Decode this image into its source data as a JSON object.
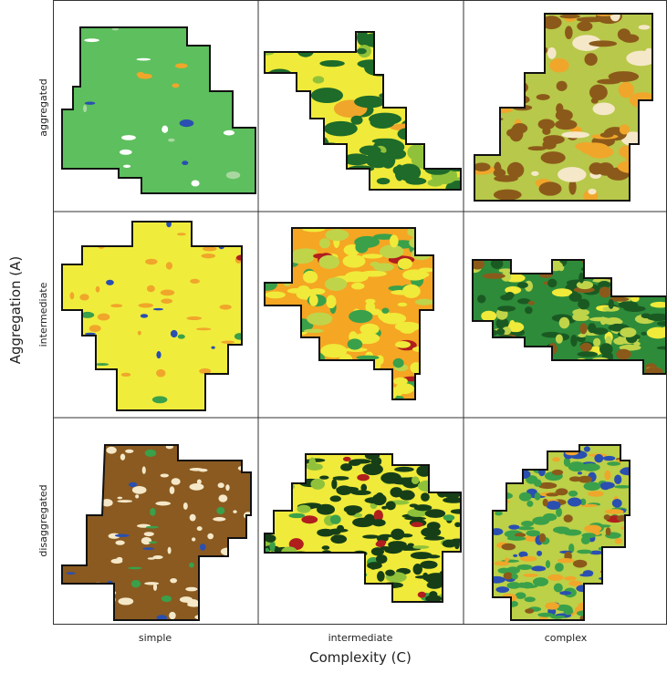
{
  "y_axis": {
    "title": "Aggregation (A)"
  },
  "x_axis": {
    "title": "Complexity (C)"
  },
  "rows": [
    "aggregated",
    "intermediate",
    "disaggregated"
  ],
  "columns": [
    "simple",
    "intermediate",
    "complex"
  ]
}
